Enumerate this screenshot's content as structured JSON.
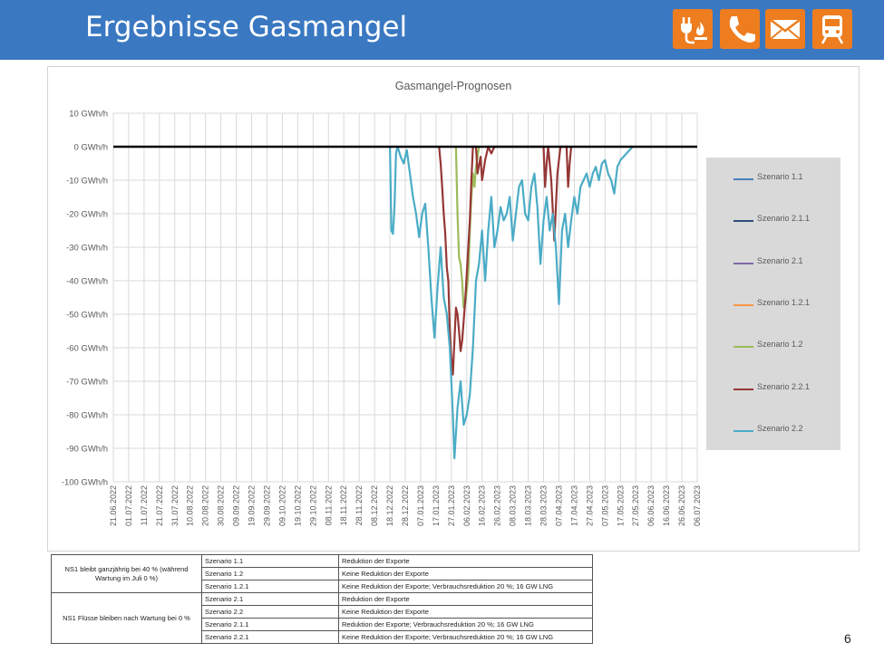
{
  "header": {
    "title": "Ergebnisse Gasmangel"
  },
  "icons": [
    {
      "name": "plug-flame-icon"
    },
    {
      "name": "phone-icon"
    },
    {
      "name": "mail-icon"
    },
    {
      "name": "train-icon"
    }
  ],
  "colors": {
    "header_bg": "#3a78c2",
    "icon_bg": "#ee7d1f",
    "legend_bg": "#d9d9d9"
  },
  "chart_data": {
    "type": "line",
    "title": "Gasmangel-Prognosen",
    "ylim": [
      -100,
      10
    ],
    "ytick_values": [
      10,
      0,
      -10,
      -20,
      -30,
      -40,
      -50,
      -60,
      -70,
      -80,
      -90,
      -100
    ],
    "ytick_labels": [
      "10 GWh/h",
      "0 GWh/h",
      "-10 GWh/h",
      "-20 GWh/h",
      "-30 GWh/h",
      "-40 GWh/h",
      "-50 GWh/h",
      "-60 GWh/h",
      "-70 GWh/h",
      "-80 GWh/h",
      "-90 GWh/h",
      "-100 GWh/h"
    ],
    "x_start": "2022-06-21",
    "x_end": "2023-07-06",
    "xtick_labels": [
      "21.06.2022",
      "01.07.2022",
      "11.07.2022",
      "21.07.2022",
      "31.07.2022",
      "10.08.2022",
      "20.08.2022",
      "30.08.2022",
      "09.09.2022",
      "19.09.2022",
      "29.09.2022",
      "09.10.2022",
      "19.10.2022",
      "29.10.2022",
      "08.11.2022",
      "18.11.2022",
      "28.11.2022",
      "08.12.2022",
      "18.12.2022",
      "28.12.2022",
      "07.01.2023",
      "17.01.2023",
      "27.01.2023",
      "06.02.2023",
      "16.02.2023",
      "26.02.2023",
      "08.03.2023",
      "18.03.2023",
      "28.03.2023",
      "07.04.2023",
      "17.04.2023",
      "27.04.2023",
      "07.05.2023",
      "17.05.2023",
      "27.05.2023",
      "06.06.2023",
      "16.06.2023",
      "26.06.2023",
      "06.07.2023"
    ],
    "grid": true,
    "legend_position": "right",
    "series": [
      {
        "name": "Szenario 1.1",
        "color": "#4a7ebb",
        "points": []
      },
      {
        "name": "Szenario 2.1.1",
        "color": "#2c4d75",
        "points": []
      },
      {
        "name": "Szenario 2.1",
        "color": "#7f68a6",
        "points": []
      },
      {
        "name": "Szenario 1.2.1",
        "color": "#f79646",
        "points": []
      },
      {
        "name": "Szenario 1.2",
        "color": "#9bbb59",
        "points": [
          [
            "2023-01-30",
            0
          ],
          [
            "2023-01-31",
            -20
          ],
          [
            "2023-02-01",
            -33
          ],
          [
            "2023-02-02",
            -35
          ],
          [
            "2023-02-03",
            -40
          ],
          [
            "2023-02-04",
            -48
          ],
          [
            "2023-02-05",
            -47
          ],
          [
            "2023-02-06",
            -43
          ],
          [
            "2023-02-07",
            -38
          ],
          [
            "2023-02-08",
            -25
          ],
          [
            "2023-02-09",
            -15
          ],
          [
            "2023-02-10",
            -8
          ],
          [
            "2023-02-11",
            -12
          ],
          [
            "2023-02-12",
            -6
          ],
          [
            "2023-02-13",
            -3
          ],
          [
            "2023-02-14",
            0
          ]
        ]
      },
      {
        "name": "Szenario 2.2.1",
        "color": "#953735",
        "points": [
          [
            "2023-01-19",
            0
          ],
          [
            "2023-01-20",
            -5
          ],
          [
            "2023-01-21",
            -12
          ],
          [
            "2023-01-22",
            -20
          ],
          [
            "2023-01-23",
            -26
          ],
          [
            "2023-01-24",
            -36
          ],
          [
            "2023-01-25",
            -40
          ],
          [
            "2023-01-26",
            -55
          ],
          [
            "2023-01-27",
            -63
          ],
          [
            "2023-01-28",
            -68
          ],
          [
            "2023-01-29",
            -58
          ],
          [
            "2023-01-30",
            -48
          ],
          [
            "2023-01-31",
            -50
          ],
          [
            "2023-02-01",
            -55
          ],
          [
            "2023-02-02",
            -61
          ],
          [
            "2023-02-03",
            -58
          ],
          [
            "2023-02-04",
            -52
          ],
          [
            "2023-02-05",
            -46
          ],
          [
            "2023-02-06",
            -38
          ],
          [
            "2023-02-07",
            -30
          ],
          [
            "2023-02-08",
            -22
          ],
          [
            "2023-02-09",
            -10
          ],
          [
            "2023-02-10",
            0
          ],
          [
            "2023-02-12",
            0
          ],
          [
            "2023-02-13",
            -8
          ],
          [
            "2023-02-15",
            -3
          ],
          [
            "2023-02-16",
            -10
          ],
          [
            "2023-02-18",
            -4
          ],
          [
            "2023-02-20",
            0
          ],
          [
            "2023-02-22",
            -2
          ],
          [
            "2023-02-24",
            0
          ],
          [
            "2023-03-28",
            0
          ],
          [
            "2023-03-29",
            -12
          ],
          [
            "2023-03-30",
            -5
          ],
          [
            "2023-03-31",
            0
          ],
          [
            "2023-04-02",
            -10
          ],
          [
            "2023-04-04",
            -28
          ],
          [
            "2023-04-05",
            -18
          ],
          [
            "2023-04-06",
            -8
          ],
          [
            "2023-04-08",
            0
          ],
          [
            "2023-04-12",
            0
          ],
          [
            "2023-04-13",
            -12
          ],
          [
            "2023-04-14",
            -5
          ],
          [
            "2023-04-15",
            0
          ]
        ]
      },
      {
        "name": "Szenario 2.2",
        "color": "#4bacc6",
        "points": [
          [
            "2022-12-18",
            0
          ],
          [
            "2022-12-19",
            -25
          ],
          [
            "2022-12-20",
            -26
          ],
          [
            "2022-12-21",
            -18
          ],
          [
            "2022-12-22",
            -2
          ],
          [
            "2022-12-23",
            0
          ],
          [
            "2022-12-25",
            -3
          ],
          [
            "2022-12-27",
            -5
          ],
          [
            "2022-12-29",
            -1
          ],
          [
            "2022-12-31",
            -8
          ],
          [
            "2023-01-02",
            -15
          ],
          [
            "2023-01-04",
            -20
          ],
          [
            "2023-01-06",
            -27
          ],
          [
            "2023-01-08",
            -20
          ],
          [
            "2023-01-10",
            -17
          ],
          [
            "2023-01-12",
            -30
          ],
          [
            "2023-01-14",
            -45
          ],
          [
            "2023-01-16",
            -57
          ],
          [
            "2023-01-18",
            -42
          ],
          [
            "2023-01-20",
            -30
          ],
          [
            "2023-01-22",
            -45
          ],
          [
            "2023-01-24",
            -50
          ],
          [
            "2023-01-26",
            -60
          ],
          [
            "2023-01-28",
            -80
          ],
          [
            "2023-01-29",
            -93
          ],
          [
            "2023-01-31",
            -78
          ],
          [
            "2023-02-02",
            -70
          ],
          [
            "2023-02-04",
            -83
          ],
          [
            "2023-02-06",
            -80
          ],
          [
            "2023-02-08",
            -74
          ],
          [
            "2023-02-10",
            -60
          ],
          [
            "2023-02-12",
            -40
          ],
          [
            "2023-02-14",
            -35
          ],
          [
            "2023-02-16",
            -25
          ],
          [
            "2023-02-18",
            -40
          ],
          [
            "2023-02-20",
            -25
          ],
          [
            "2023-02-22",
            -15
          ],
          [
            "2023-02-24",
            -30
          ],
          [
            "2023-02-26",
            -25
          ],
          [
            "2023-02-28",
            -18
          ],
          [
            "2023-03-02",
            -22
          ],
          [
            "2023-03-04",
            -20
          ],
          [
            "2023-03-06",
            -15
          ],
          [
            "2023-03-08",
            -28
          ],
          [
            "2023-03-10",
            -20
          ],
          [
            "2023-03-12",
            -12
          ],
          [
            "2023-03-14",
            -10
          ],
          [
            "2023-03-16",
            -20
          ],
          [
            "2023-03-18",
            -22
          ],
          [
            "2023-03-20",
            -12
          ],
          [
            "2023-03-22",
            -8
          ],
          [
            "2023-03-24",
            -18
          ],
          [
            "2023-03-26",
            -35
          ],
          [
            "2023-03-28",
            -22
          ],
          [
            "2023-03-30",
            -15
          ],
          [
            "2023-04-01",
            -25
          ],
          [
            "2023-04-03",
            -20
          ],
          [
            "2023-04-05",
            -30
          ],
          [
            "2023-04-07",
            -47
          ],
          [
            "2023-04-09",
            -25
          ],
          [
            "2023-04-11",
            -20
          ],
          [
            "2023-04-13",
            -30
          ],
          [
            "2023-04-15",
            -22
          ],
          [
            "2023-04-17",
            -15
          ],
          [
            "2023-04-19",
            -20
          ],
          [
            "2023-04-21",
            -12
          ],
          [
            "2023-04-23",
            -10
          ],
          [
            "2023-04-25",
            -8
          ],
          [
            "2023-04-27",
            -12
          ],
          [
            "2023-04-29",
            -8
          ],
          [
            "2023-05-01",
            -6
          ],
          [
            "2023-05-03",
            -10
          ],
          [
            "2023-05-05",
            -5
          ],
          [
            "2023-05-07",
            -4
          ],
          [
            "2023-05-09",
            -8
          ],
          [
            "2023-05-11",
            -10
          ],
          [
            "2023-05-13",
            -14
          ],
          [
            "2023-05-15",
            -6
          ],
          [
            "2023-05-17",
            -4
          ],
          [
            "2023-05-19",
            -3
          ],
          [
            "2023-05-21",
            -2
          ],
          [
            "2023-05-23",
            -1
          ],
          [
            "2023-05-25",
            0
          ]
        ]
      }
    ]
  },
  "table": {
    "groups": [
      {
        "label": "NS1 bleibt ganzjährig bei 40 % (während Wartung im Juli 0 %)",
        "rows": [
          {
            "scenario": "Szenario 1.1",
            "description": "Reduktion der Exporte"
          },
          {
            "scenario": "Szenario 1.2",
            "description": "Keine Reduktion der Exporte"
          },
          {
            "scenario": "Szenario 1.2.1",
            "description": "Keine Reduktion der Exporte; Verbrauchsreduktion 20 %; 16 GW LNG"
          }
        ]
      },
      {
        "label": "NS1 Flüsse bleiben nach Wartung bei 0 %",
        "rows": [
          {
            "scenario": "Szenario 2.1",
            "description": "Reduktion der Exporte"
          },
          {
            "scenario": "Szenario 2.2",
            "description": "Keine Reduktion der Exporte"
          },
          {
            "scenario": "Szenario 2.1.1",
            "description": "Reduktion der Exporte; Verbrauchsreduktion 20 %; 16 GW LNG"
          },
          {
            "scenario": "Szenario 2.2.1",
            "description": "Keine Reduktion der Exporte; Verbrauchsreduktion 20 %; 16 GW LNG"
          }
        ]
      }
    ]
  },
  "page_number": "6"
}
